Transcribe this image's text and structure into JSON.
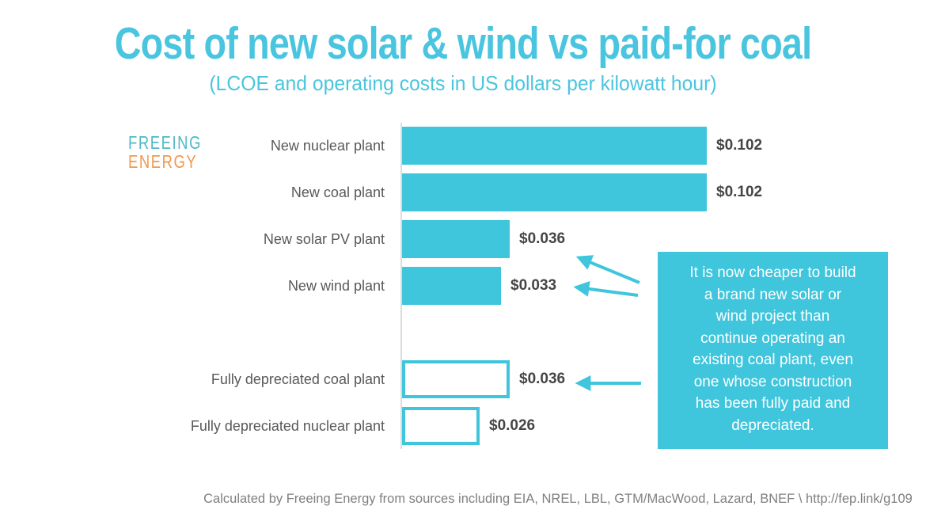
{
  "header": {
    "title": "Cost of new solar & wind vs paid-for coal",
    "subtitle": "(LCOE and operating costs in US dollars per kilowatt hour)"
  },
  "logo": {
    "line1": "FREEING",
    "line2": "ENERGY"
  },
  "chart_data": {
    "type": "bar",
    "orientation": "horizontal",
    "title": "Cost of new solar & wind vs paid-for coal",
    "subtitle": "(LCOE and operating costs in US dollars per kilowatt hour)",
    "unit": "US dollars per kilowatt hour",
    "categories": [
      "New nuclear plant",
      "New coal plant",
      "New solar PV plant",
      "New wind plant",
      "Fully depreciated coal plant",
      "Fully depreciated nuclear plant"
    ],
    "values": [
      0.102,
      0.102,
      0.036,
      0.033,
      0.036,
      0.026
    ],
    "value_labels": [
      "$0.102",
      "$0.102",
      "$0.036",
      "$0.033",
      "$0.036",
      "$0.026"
    ],
    "bar_style": [
      "filled",
      "filled",
      "filled",
      "filled",
      "outlined",
      "outlined"
    ],
    "gap_after_index": 3,
    "xlim": [
      0,
      0.102
    ],
    "grid": false,
    "legend": "none",
    "colors": {
      "bar_fill": "#3FC5DC",
      "bar_outline": "#3FC5DC",
      "category_text": "#595959",
      "value_text": "#454545"
    }
  },
  "annotation": {
    "text": "It is now cheaper to build\na brand new solar or\nwind project than\ncontinue operating an\nexisting coal plant, even\none whose construction\nhas been fully paid and\ndepreciated."
  },
  "footer": {
    "source": "Calculated by Freeing Energy from sources including EIA, NREL, LBL, GTM/MacWood, Lazard, BNEF \\ http://fep.link/g109"
  },
  "colors": {
    "accent": "#3FC5DC",
    "title": "#4AC5DF",
    "logo_teal": "#4FB9C6",
    "logo_orange": "#F0984C"
  }
}
